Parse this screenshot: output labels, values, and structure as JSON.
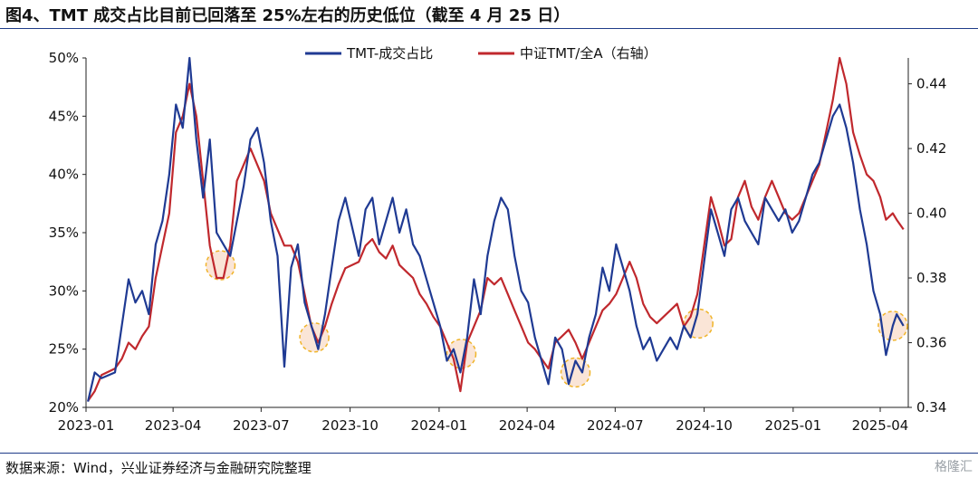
{
  "title": "图4、TMT 成交占比目前已回落至 25%左右的历史低位（截至 4 月 25 日）",
  "source": "数据来源：Wind，兴业证券经济与金融研究院整理",
  "watermark": "格隆汇",
  "chart_data": {
    "type": "line",
    "x_ticks": [
      "2023-01",
      "2023-04",
      "2023-07",
      "2023-10",
      "2024-01",
      "2024-04",
      "2024-07",
      "2024-10",
      "2025-01",
      "2025-04"
    ],
    "y_left": {
      "ticks": [
        "20%",
        "25%",
        "30%",
        "35%",
        "40%",
        "45%",
        "50%"
      ],
      "ylim": [
        0.2,
        0.5
      ]
    },
    "y_right": {
      "ticks": [
        "0.34",
        "0.36",
        "0.38",
        "0.40",
        "0.42",
        "0.44"
      ],
      "ylim": [
        0.34,
        0.448
      ]
    },
    "legend_position": "top-center",
    "series": [
      {
        "name": "TMT-成交占比",
        "axis": "left",
        "color": "#1f3a93",
        "points": [
          [
            "2023-01-03",
            0.205
          ],
          [
            "2023-01-10",
            0.23
          ],
          [
            "2023-01-17",
            0.225
          ],
          [
            "2023-01-31",
            0.23
          ],
          [
            "2023-02-07",
            0.27
          ],
          [
            "2023-02-14",
            0.31
          ],
          [
            "2023-02-21",
            0.29
          ],
          [
            "2023-02-28",
            0.3
          ],
          [
            "2023-03-07",
            0.28
          ],
          [
            "2023-03-14",
            0.34
          ],
          [
            "2023-03-21",
            0.36
          ],
          [
            "2023-03-28",
            0.4
          ],
          [
            "2023-04-04",
            0.46
          ],
          [
            "2023-04-11",
            0.44
          ],
          [
            "2023-04-18",
            0.5
          ],
          [
            "2023-04-25",
            0.43
          ],
          [
            "2023-05-02",
            0.38
          ],
          [
            "2023-05-09",
            0.43
          ],
          [
            "2023-05-16",
            0.35
          ],
          [
            "2023-05-23",
            0.34
          ],
          [
            "2023-05-30",
            0.33
          ],
          [
            "2023-06-06",
            0.36
          ],
          [
            "2023-06-13",
            0.39
          ],
          [
            "2023-06-20",
            0.43
          ],
          [
            "2023-06-27",
            0.44
          ],
          [
            "2023-07-04",
            0.41
          ],
          [
            "2023-07-11",
            0.36
          ],
          [
            "2023-07-18",
            0.33
          ],
          [
            "2023-07-25",
            0.235
          ],
          [
            "2023-08-01",
            0.32
          ],
          [
            "2023-08-08",
            0.34
          ],
          [
            "2023-08-15",
            0.29
          ],
          [
            "2023-08-22",
            0.27
          ],
          [
            "2023-08-29",
            0.25
          ],
          [
            "2023-09-05",
            0.28
          ],
          [
            "2023-09-12",
            0.32
          ],
          [
            "2023-09-19",
            0.36
          ],
          [
            "2023-09-26",
            0.38
          ],
          [
            "2023-10-10",
            0.33
          ],
          [
            "2023-10-17",
            0.37
          ],
          [
            "2023-10-24",
            0.38
          ],
          [
            "2023-10-31",
            0.34
          ],
          [
            "2023-11-07",
            0.36
          ],
          [
            "2023-11-14",
            0.38
          ],
          [
            "2023-11-21",
            0.35
          ],
          [
            "2023-11-28",
            0.37
          ],
          [
            "2023-12-05",
            0.34
          ],
          [
            "2023-12-12",
            0.33
          ],
          [
            "2023-12-19",
            0.31
          ],
          [
            "2023-12-26",
            0.29
          ],
          [
            "2024-01-02",
            0.27
          ],
          [
            "2024-01-09",
            0.24
          ],
          [
            "2024-01-16",
            0.25
          ],
          [
            "2024-01-23",
            0.23
          ],
          [
            "2024-01-30",
            0.26
          ],
          [
            "2024-02-06",
            0.31
          ],
          [
            "2024-02-13",
            0.28
          ],
          [
            "2024-02-20",
            0.33
          ],
          [
            "2024-02-27",
            0.36
          ],
          [
            "2024-03-05",
            0.38
          ],
          [
            "2024-03-12",
            0.37
          ],
          [
            "2024-03-19",
            0.33
          ],
          [
            "2024-03-26",
            0.3
          ],
          [
            "2024-04-02",
            0.29
          ],
          [
            "2024-04-09",
            0.26
          ],
          [
            "2024-04-16",
            0.24
          ],
          [
            "2024-04-23",
            0.22
          ],
          [
            "2024-04-30",
            0.26
          ],
          [
            "2024-05-07",
            0.25
          ],
          [
            "2024-05-14",
            0.22
          ],
          [
            "2024-05-21",
            0.24
          ],
          [
            "2024-05-28",
            0.23
          ],
          [
            "2024-06-04",
            0.26
          ],
          [
            "2024-06-11",
            0.28
          ],
          [
            "2024-06-18",
            0.32
          ],
          [
            "2024-06-25",
            0.3
          ],
          [
            "2024-07-02",
            0.34
          ],
          [
            "2024-07-09",
            0.32
          ],
          [
            "2024-07-16",
            0.3
          ],
          [
            "2024-07-23",
            0.27
          ],
          [
            "2024-07-30",
            0.25
          ],
          [
            "2024-08-06",
            0.26
          ],
          [
            "2024-08-13",
            0.24
          ],
          [
            "2024-08-20",
            0.25
          ],
          [
            "2024-08-27",
            0.26
          ],
          [
            "2024-09-03",
            0.25
          ],
          [
            "2024-09-10",
            0.27
          ],
          [
            "2024-09-17",
            0.26
          ],
          [
            "2024-09-24",
            0.28
          ],
          [
            "2024-10-08",
            0.37
          ],
          [
            "2024-10-15",
            0.35
          ],
          [
            "2024-10-22",
            0.33
          ],
          [
            "2024-10-29",
            0.37
          ],
          [
            "2024-11-05",
            0.38
          ],
          [
            "2024-11-12",
            0.36
          ],
          [
            "2024-11-19",
            0.35
          ],
          [
            "2024-11-26",
            0.34
          ],
          [
            "2024-12-03",
            0.38
          ],
          [
            "2024-12-10",
            0.37
          ],
          [
            "2024-12-17",
            0.36
          ],
          [
            "2024-12-24",
            0.37
          ],
          [
            "2024-12-31",
            0.35
          ],
          [
            "2025-01-07",
            0.36
          ],
          [
            "2025-01-14",
            0.38
          ],
          [
            "2025-01-21",
            0.4
          ],
          [
            "2025-01-28",
            0.41
          ],
          [
            "2025-02-04",
            0.43
          ],
          [
            "2025-02-11",
            0.45
          ],
          [
            "2025-02-18",
            0.46
          ],
          [
            "2025-02-25",
            0.44
          ],
          [
            "2025-03-04",
            0.41
          ],
          [
            "2025-03-11",
            0.37
          ],
          [
            "2025-03-18",
            0.34
          ],
          [
            "2025-03-25",
            0.3
          ],
          [
            "2025-04-01",
            0.28
          ],
          [
            "2025-04-07",
            0.245
          ],
          [
            "2025-04-14",
            0.27
          ],
          [
            "2025-04-18",
            0.28
          ],
          [
            "2025-04-25",
            0.27
          ]
        ]
      },
      {
        "name": "中证TMT/全A（右轴）",
        "axis": "right",
        "color": "#c0282d",
        "points": [
          [
            "2023-01-03",
            0.342
          ],
          [
            "2023-01-10",
            0.345
          ],
          [
            "2023-01-17",
            0.35
          ],
          [
            "2023-01-31",
            0.352
          ],
          [
            "2023-02-07",
            0.355
          ],
          [
            "2023-02-14",
            0.36
          ],
          [
            "2023-02-21",
            0.358
          ],
          [
            "2023-02-28",
            0.362
          ],
          [
            "2023-03-07",
            0.365
          ],
          [
            "2023-03-14",
            0.38
          ],
          [
            "2023-03-21",
            0.39
          ],
          [
            "2023-03-28",
            0.4
          ],
          [
            "2023-04-04",
            0.425
          ],
          [
            "2023-04-11",
            0.43
          ],
          [
            "2023-04-18",
            0.44
          ],
          [
            "2023-04-25",
            0.43
          ],
          [
            "2023-05-02",
            0.41
          ],
          [
            "2023-05-09",
            0.39
          ],
          [
            "2023-05-16",
            0.38
          ],
          [
            "2023-05-23",
            0.38
          ],
          [
            "2023-05-30",
            0.39
          ],
          [
            "2023-06-06",
            0.41
          ],
          [
            "2023-06-13",
            0.415
          ],
          [
            "2023-06-20",
            0.42
          ],
          [
            "2023-06-27",
            0.415
          ],
          [
            "2023-07-04",
            0.41
          ],
          [
            "2023-07-11",
            0.4
          ],
          [
            "2023-07-18",
            0.395
          ],
          [
            "2023-07-25",
            0.39
          ],
          [
            "2023-08-01",
            0.39
          ],
          [
            "2023-08-08",
            0.385
          ],
          [
            "2023-08-15",
            0.375
          ],
          [
            "2023-08-22",
            0.365
          ],
          [
            "2023-08-29",
            0.36
          ],
          [
            "2023-09-05",
            0.365
          ],
          [
            "2023-09-12",
            0.372
          ],
          [
            "2023-09-19",
            0.378
          ],
          [
            "2023-09-26",
            0.383
          ],
          [
            "2023-10-10",
            0.385
          ],
          [
            "2023-10-17",
            0.39
          ],
          [
            "2023-10-24",
            0.392
          ],
          [
            "2023-10-31",
            0.388
          ],
          [
            "2023-11-07",
            0.386
          ],
          [
            "2023-11-14",
            0.39
          ],
          [
            "2023-11-21",
            0.384
          ],
          [
            "2023-11-28",
            0.382
          ],
          [
            "2023-12-05",
            0.38
          ],
          [
            "2023-12-12",
            0.375
          ],
          [
            "2023-12-19",
            0.372
          ],
          [
            "2023-12-26",
            0.368
          ],
          [
            "2024-01-02",
            0.365
          ],
          [
            "2024-01-09",
            0.36
          ],
          [
            "2024-01-16",
            0.355
          ],
          [
            "2024-01-23",
            0.345
          ],
          [
            "2024-01-30",
            0.36
          ],
          [
            "2024-02-06",
            0.365
          ],
          [
            "2024-02-13",
            0.37
          ],
          [
            "2024-02-20",
            0.38
          ],
          [
            "2024-02-27",
            0.378
          ],
          [
            "2024-03-05",
            0.38
          ],
          [
            "2024-03-12",
            0.375
          ],
          [
            "2024-03-19",
            0.37
          ],
          [
            "2024-03-26",
            0.365
          ],
          [
            "2024-04-02",
            0.36
          ],
          [
            "2024-04-09",
            0.358
          ],
          [
            "2024-04-16",
            0.355
          ],
          [
            "2024-04-23",
            0.352
          ],
          [
            "2024-04-30",
            0.36
          ],
          [
            "2024-05-07",
            0.362
          ],
          [
            "2024-05-14",
            0.364
          ],
          [
            "2024-05-21",
            0.36
          ],
          [
            "2024-05-28",
            0.355
          ],
          [
            "2024-06-04",
            0.36
          ],
          [
            "2024-06-11",
            0.365
          ],
          [
            "2024-06-18",
            0.37
          ],
          [
            "2024-06-25",
            0.372
          ],
          [
            "2024-07-02",
            0.375
          ],
          [
            "2024-07-09",
            0.38
          ],
          [
            "2024-07-16",
            0.385
          ],
          [
            "2024-07-23",
            0.38
          ],
          [
            "2024-07-30",
            0.372
          ],
          [
            "2024-08-06",
            0.368
          ],
          [
            "2024-08-13",
            0.366
          ],
          [
            "2024-08-20",
            0.368
          ],
          [
            "2024-08-27",
            0.37
          ],
          [
            "2024-09-03",
            0.372
          ],
          [
            "2024-09-10",
            0.365
          ],
          [
            "2024-09-17",
            0.368
          ],
          [
            "2024-09-24",
            0.375
          ],
          [
            "2024-10-08",
            0.405
          ],
          [
            "2024-10-15",
            0.398
          ],
          [
            "2024-10-22",
            0.39
          ],
          [
            "2024-10-29",
            0.392
          ],
          [
            "2024-11-05",
            0.405
          ],
          [
            "2024-11-12",
            0.41
          ],
          [
            "2024-11-19",
            0.402
          ],
          [
            "2024-11-26",
            0.398
          ],
          [
            "2024-12-03",
            0.405
          ],
          [
            "2024-12-10",
            0.41
          ],
          [
            "2024-12-17",
            0.405
          ],
          [
            "2024-12-24",
            0.4
          ],
          [
            "2024-12-31",
            0.398
          ],
          [
            "2025-01-07",
            0.4
          ],
          [
            "2025-01-14",
            0.405
          ],
          [
            "2025-01-21",
            0.41
          ],
          [
            "2025-01-28",
            0.415
          ],
          [
            "2025-02-04",
            0.425
          ],
          [
            "2025-02-11",
            0.435
          ],
          [
            "2025-02-18",
            0.448
          ],
          [
            "2025-02-25",
            0.44
          ],
          [
            "2025-03-04",
            0.425
          ],
          [
            "2025-03-11",
            0.418
          ],
          [
            "2025-03-18",
            0.412
          ],
          [
            "2025-03-25",
            0.41
          ],
          [
            "2025-04-01",
            0.405
          ],
          [
            "2025-04-07",
            0.398
          ],
          [
            "2025-04-14",
            0.4
          ],
          [
            "2025-04-18",
            0.398
          ],
          [
            "2025-04-25",
            0.395
          ]
        ]
      }
    ],
    "highlight_circles": [
      {
        "date": "2023-05-20",
        "value": 0.322
      },
      {
        "date": "2023-08-25",
        "value": 0.26
      },
      {
        "date": "2024-01-24",
        "value": 0.246
      },
      {
        "date": "2024-05-21",
        "value": 0.23
      },
      {
        "date": "2024-09-25",
        "value": 0.272
      },
      {
        "date": "2025-04-14",
        "value": 0.27
      }
    ]
  }
}
